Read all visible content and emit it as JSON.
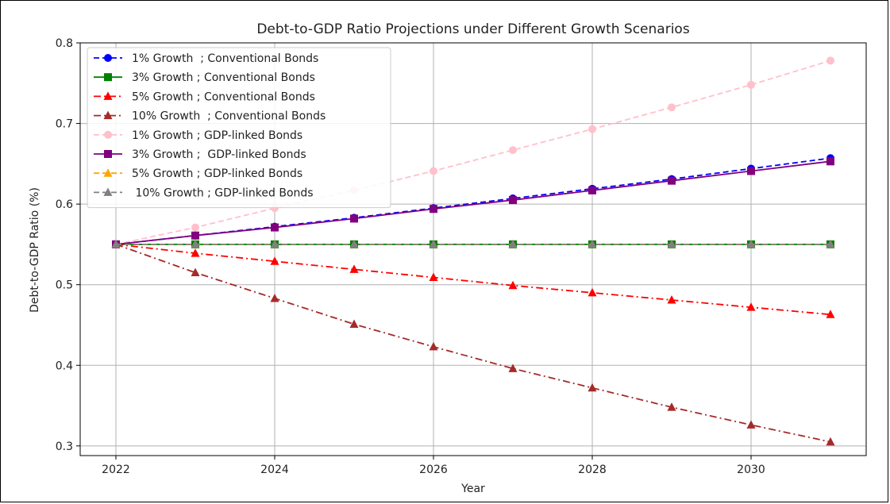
{
  "chart_data": {
    "type": "line",
    "title": "Debt-to-GDP Ratio Projections under Different Growth Scenarios",
    "xlabel": "Year",
    "ylabel": "Debt-to-GDP Ratio (%)",
    "xlim": [
      2021.55,
      2031.45
    ],
    "ylim": [
      0.288,
      0.8
    ],
    "x_ticks": [
      2022,
      2024,
      2026,
      2028,
      2030
    ],
    "y_ticks": [
      0.3,
      0.4,
      0.5,
      0.6,
      0.7,
      0.8
    ],
    "grid": true,
    "legend_position": "upper-left",
    "x": [
      2022,
      2023,
      2024,
      2025,
      2026,
      2027,
      2028,
      2029,
      2030,
      2031
    ],
    "series": [
      {
        "name": "1% Growth  ; Conventional Bonds",
        "color": "#0000ff",
        "marker": "circle",
        "linestyle": "dashed",
        "values": [
          0.55,
          0.561,
          0.572,
          0.583,
          0.595,
          0.607,
          0.619,
          0.631,
          0.644,
          0.657
        ]
      },
      {
        "name": "3% Growth ; Conventional Bonds",
        "color": "#008000",
        "marker": "square",
        "linestyle": "solid",
        "values": [
          0.55,
          0.55,
          0.55,
          0.55,
          0.55,
          0.55,
          0.55,
          0.55,
          0.55,
          0.55
        ]
      },
      {
        "name": "5% Growth ; Conventional Bonds",
        "color": "#ff0000",
        "marker": "triangle",
        "linestyle": "dashdot",
        "values": [
          0.55,
          0.539,
          0.529,
          0.519,
          0.509,
          0.499,
          0.49,
          0.481,
          0.472,
          0.463
        ]
      },
      {
        "name": "10% Growth  ; Conventional Bonds",
        "color": "#a52a2a",
        "marker": "triangle",
        "linestyle": "dashdot",
        "values": [
          0.55,
          0.515,
          0.483,
          0.451,
          0.423,
          0.396,
          0.372,
          0.348,
          0.326,
          0.305
        ]
      },
      {
        "name": "1% Growth ; GDP-linked Bonds",
        "color": "#ffc0cb",
        "marker": "circle",
        "linestyle": "dashed",
        "values": [
          0.55,
          0.571,
          0.595,
          0.617,
          0.641,
          0.667,
          0.693,
          0.72,
          0.748,
          0.778
        ]
      },
      {
        "name": "3% Growth ;  GDP-linked Bonds",
        "color": "#800080",
        "marker": "square",
        "linestyle": "solid",
        "values": [
          0.55,
          0.561,
          0.571,
          0.582,
          0.594,
          0.605,
          0.617,
          0.629,
          0.641,
          0.653
        ]
      },
      {
        "name": "5% Growth ; GDP-linked Bonds",
        "color": "#ffa500",
        "marker": "triangle",
        "linestyle": "dashed",
        "values": [
          0.55,
          0.55,
          0.55,
          0.55,
          0.55,
          0.55,
          0.55,
          0.55,
          0.55,
          0.55
        ]
      },
      {
        "name": " 10% Growth ; GDP-linked Bonds",
        "color": "#808080",
        "marker": "triangle",
        "linestyle": "dashed",
        "values": [
          0.55,
          0.55,
          0.55,
          0.55,
          0.55,
          0.55,
          0.55,
          0.55,
          0.55,
          0.55
        ]
      }
    ]
  }
}
